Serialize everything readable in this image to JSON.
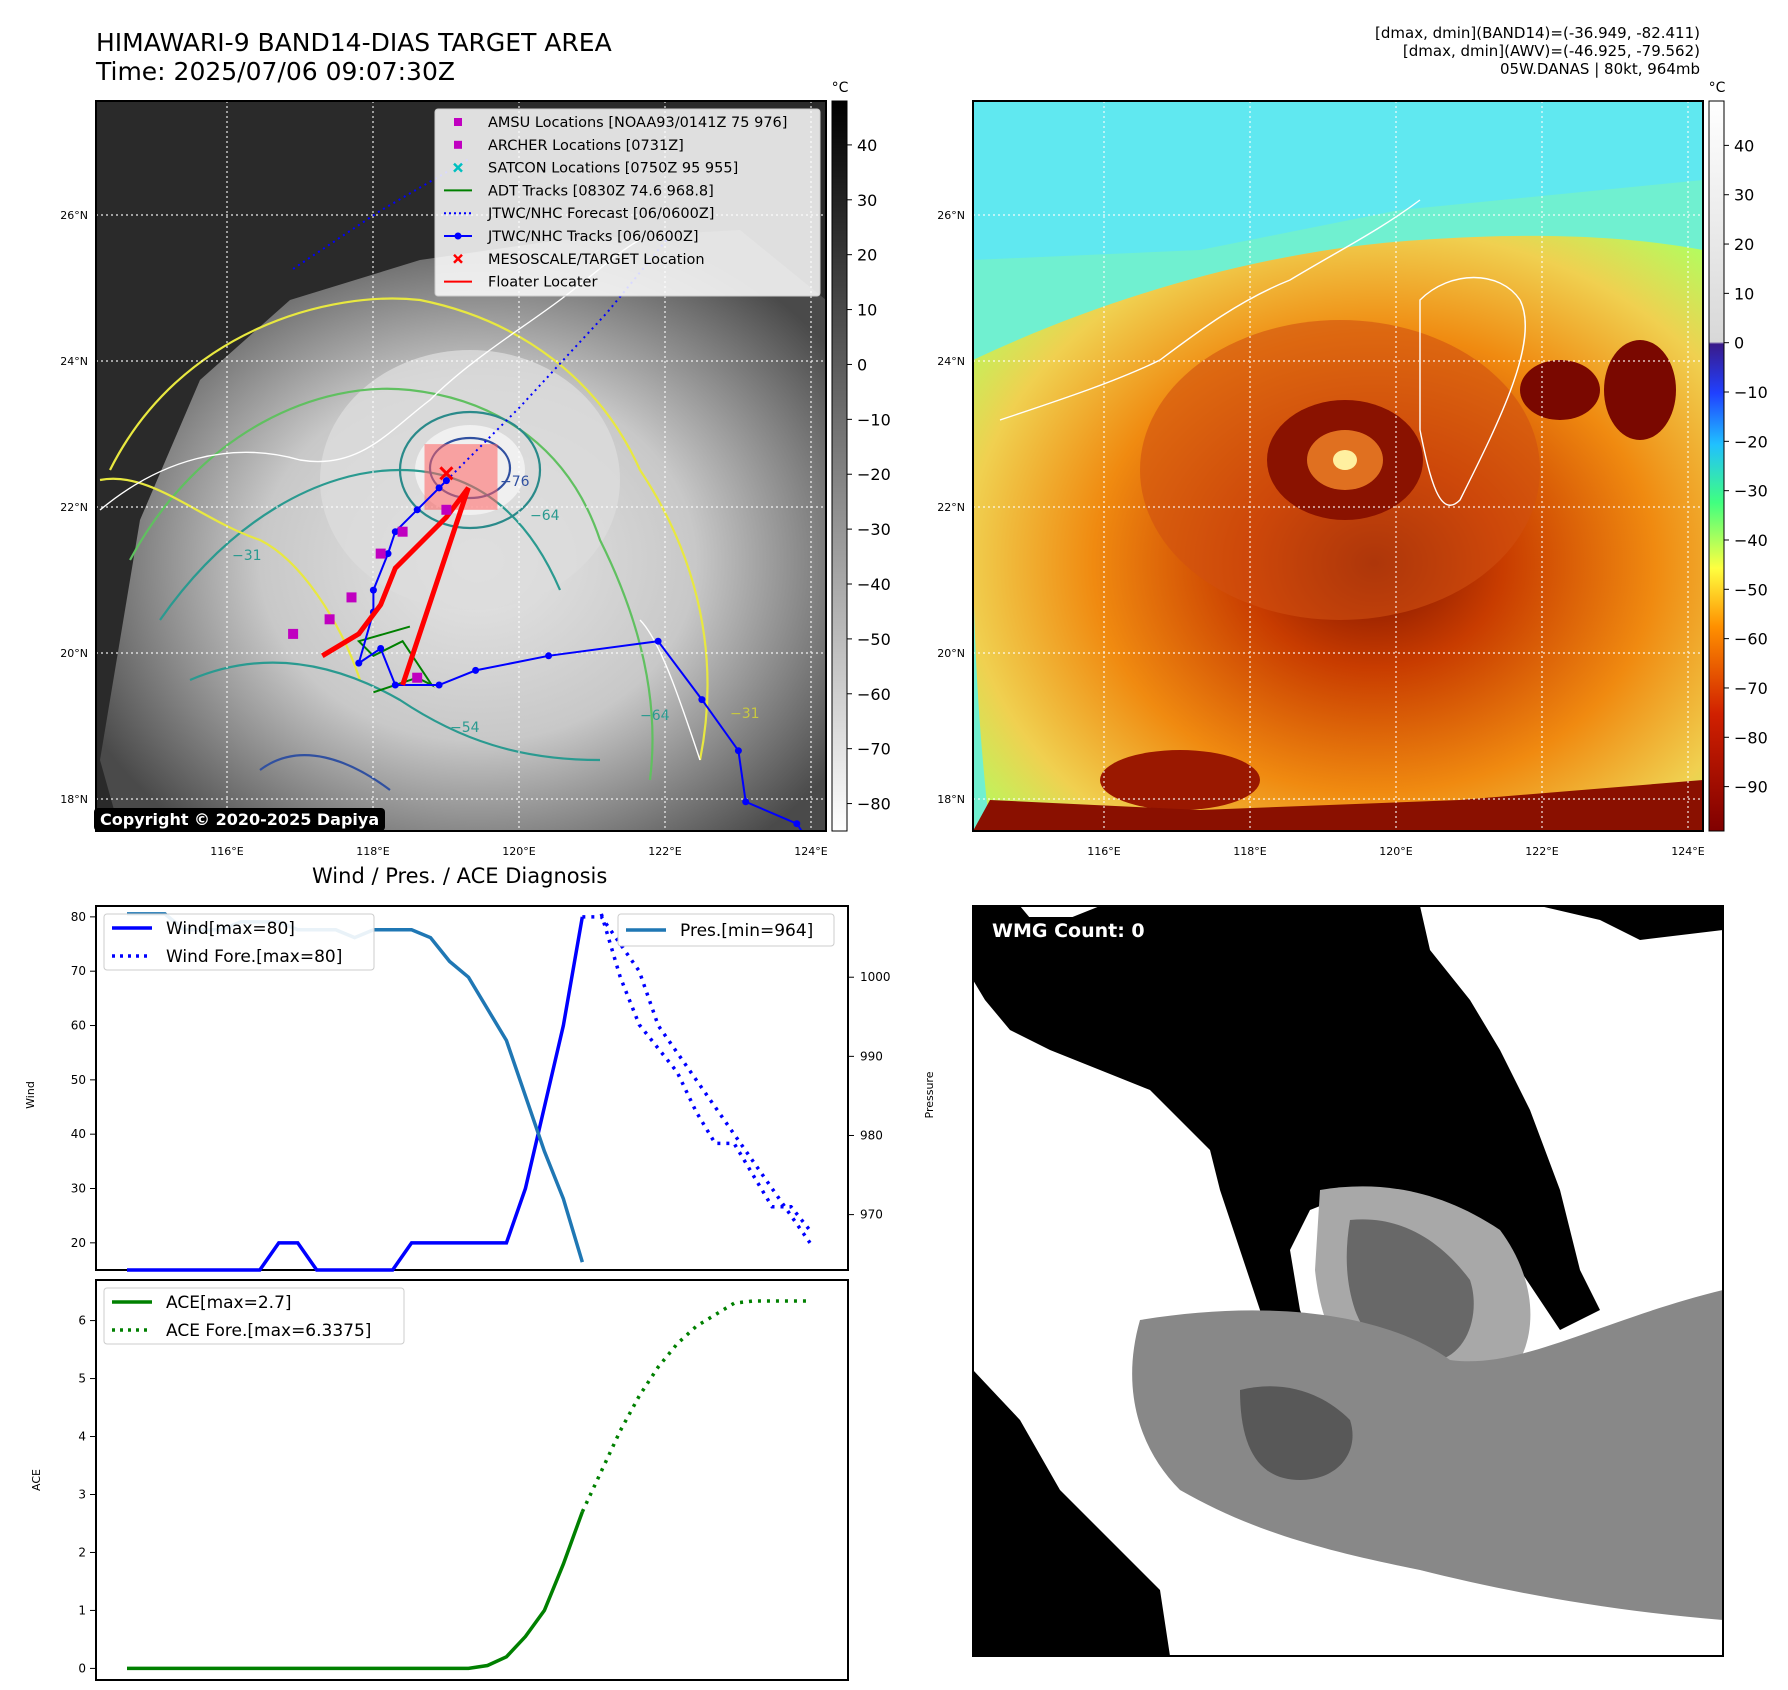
{
  "header": {
    "title_line1": "HIMAWARI-9 BAND14-DIAS TARGET AREA",
    "title_line2": "Time: 2025/07/06 09:07:30Z",
    "right_line1": "[dmax, dmin](BAND14)=(-36.949, -82.411)",
    "right_line2": "[dmax, dmin](AWV)=(-46.925, -79.562)",
    "right_line3": "05W.DANAS | 80kt, 964mb"
  },
  "copyright": "Copyright © 2020-2025 Dapiya",
  "maps": {
    "lon_ticks": [
      "116°E",
      "118°E",
      "120°E",
      "122°E",
      "124°E"
    ],
    "lat_ticks": [
      "26°N",
      "24°N",
      "22°N",
      "20°N",
      "18°N"
    ],
    "colorbar_unit": "°C",
    "left_colorbar_ticks": [
      "40",
      "30",
      "20",
      "10",
      "0",
      "−10",
      "−20",
      "−30",
      "−40",
      "−50",
      "−60",
      "−70",
      "−80"
    ],
    "right_colorbar_ticks": [
      "40",
      "30",
      "20",
      "10",
      "0",
      "−10",
      "−20",
      "−30",
      "−40",
      "−50",
      "−60",
      "−70",
      "−80",
      "−90"
    ],
    "contour_labels": [
      "−31",
      "−54",
      "−64",
      "−76",
      "−64",
      "−31",
      "−54",
      "−64"
    ]
  },
  "legend_map": [
    {
      "label": "AMSU Locations [NOAA93/0141Z 75 976]",
      "color": "#c000c0",
      "marker": "square"
    },
    {
      "label": "ARCHER Locations [0731Z]",
      "color": "#c000c0",
      "marker": "square"
    },
    {
      "label": "SATCON Locations [0750Z 95 955]",
      "color": "#00c0c0",
      "marker": "x"
    },
    {
      "label": "ADT Tracks [0830Z 74.6 968.8]",
      "color": "#008000",
      "marker": "line"
    },
    {
      "label": "JTWC/NHC Forecast [06/0600Z]",
      "color": "#0000ff",
      "marker": "dotted"
    },
    {
      "label": "JTWC/NHC Tracks [06/0600Z]",
      "color": "#0000ff",
      "marker": "line-dot"
    },
    {
      "label": "MESOSCALE/TARGET Location",
      "color": "#ff0000",
      "marker": "x"
    },
    {
      "label": "Floater Locater",
      "color": "#ff0000",
      "marker": "line"
    }
  ],
  "tracks": {
    "jtwc_tracks": {
      "lon": [
        124.0,
        123.8,
        123.1,
        123.0,
        122.5,
        121.9,
        120.4,
        119.4,
        118.9,
        118.3,
        118.1,
        117.8,
        118.0,
        118.0,
        118.2,
        118.3,
        118.6,
        118.9,
        119.0
      ],
      "lat": [
        17.6,
        17.9,
        18.2,
        18.9,
        19.6,
        20.4,
        20.2,
        20.0,
        19.8,
        19.8,
        20.3,
        20.1,
        20.8,
        21.1,
        21.6,
        21.9,
        22.2,
        22.5,
        22.6
      ]
    },
    "jtwc_forecast": {
      "lon": [
        119.0,
        120.0,
        121.2,
        122.1
      ],
      "lat": [
        22.6,
        23.6,
        24.9,
        26.0
      ]
    },
    "jtwc_forecast_sw": {
      "lon": [
        116.9,
        118.1,
        119.3
      ],
      "lat": [
        25.5,
        26.3,
        27.0
      ]
    },
    "adt": {
      "lon": [
        118.5,
        117.8,
        118.0,
        118.4,
        118.8,
        118.6,
        118.0
      ],
      "lat": [
        20.6,
        20.4,
        20.2,
        20.4,
        19.8,
        19.9,
        19.7
      ]
    },
    "archer": {
      "lon": [
        116.9,
        117.4,
        117.7,
        118.1,
        118.4,
        119.0,
        118.6
      ],
      "lat": [
        20.5,
        20.7,
        21.0,
        21.6,
        21.9,
        22.2,
        19.9
      ]
    },
    "floater": {
      "lon": [
        117.3,
        117.8,
        118.1,
        118.3,
        118.7,
        119.0,
        119.3,
        118.4
      ],
      "lat": [
        20.2,
        20.5,
        20.9,
        21.4,
        21.8,
        22.1,
        22.5,
        19.8
      ]
    },
    "target_box": {
      "lon": [
        118.7,
        119.7
      ],
      "lat": [
        22.2,
        23.1
      ]
    },
    "target_center": {
      "lon": 119.0,
      "lat": 22.7
    }
  },
  "diagnosis": {
    "title": "Wind / Pres. / ACE Diagnosis",
    "wind_label": "Wind",
    "pressure_label": "Pressure",
    "ace_label": "ACE"
  },
  "chart_data": [
    {
      "type": "line",
      "series": [
        {
          "name": "Wind[max=80]",
          "x": [
            0,
            1,
            2,
            3,
            4,
            5,
            6,
            7,
            8,
            9,
            10,
            11,
            12,
            13,
            14,
            15,
            16,
            17,
            18,
            19,
            20,
            21,
            22,
            23,
            24
          ],
          "values": [
            15,
            15,
            15,
            15,
            15,
            15,
            15,
            15,
            20,
            20,
            15,
            15,
            15,
            15,
            15,
            20,
            20,
            20,
            20,
            20,
            20,
            30,
            45,
            60,
            80
          ]
        },
        {
          "name": "Wind Fore.[max=80]",
          "x": [
            24,
            25,
            26,
            27,
            28,
            29,
            30,
            31,
            32,
            33,
            34,
            35,
            36
          ],
          "values": [
            80,
            80,
            75,
            70,
            60,
            55,
            50,
            45,
            40,
            35,
            30,
            25,
            20
          ]
        }
      ],
      "ylim": [
        15,
        82
      ],
      "yticks": [
        20,
        30,
        40,
        50,
        60,
        70,
        80
      ],
      "ylabel": "Wind"
    },
    {
      "type": "line",
      "series": [
        {
          "name": "Pres.[min=964]",
          "x": [
            0,
            1,
            2,
            3,
            4,
            5,
            6,
            7,
            8,
            9,
            10,
            11,
            12,
            13,
            14,
            15,
            16,
            17,
            18,
            19,
            20,
            21,
            22,
            23,
            24
          ],
          "values": [
            1008,
            1008,
            1008,
            1006,
            1006,
            1006,
            1007,
            1007,
            1007,
            1006,
            1006,
            1006,
            1005,
            1006,
            1006,
            1006,
            1005,
            1002,
            1000,
            996,
            992,
            985,
            978,
            972,
            964
          ]
        },
        {
          "name": "",
          "x": [
            25,
            26,
            27,
            28,
            29,
            30,
            31,
            32,
            33,
            34,
            35,
            36
          ],
          "values": [
            1008,
            1000,
            994,
            991,
            988,
            983,
            979,
            979,
            975,
            971,
            971,
            968
          ]
        }
      ],
      "ylim": [
        963,
        1009
      ],
      "yticks": [
        970,
        980,
        990,
        1000
      ],
      "ylabel": "Pressure"
    },
    {
      "type": "line",
      "series": [
        {
          "name": "ACE[max=2.7]",
          "x": [
            0,
            12,
            14,
            16,
            18,
            19,
            20,
            21,
            22,
            23,
            24
          ],
          "values": [
            0,
            0,
            0,
            0,
            0,
            0.05,
            0.2,
            0.55,
            1.0,
            1.8,
            2.7
          ]
        },
        {
          "name": "ACE Fore.[max=6.3375]",
          "x": [
            24,
            25,
            26,
            27,
            28,
            29,
            30,
            31,
            32,
            33,
            34,
            35,
            36
          ],
          "values": [
            2.7,
            3.4,
            4.1,
            4.7,
            5.2,
            5.6,
            5.9,
            6.1,
            6.3,
            6.3375,
            6.3375,
            6.3375,
            6.3375
          ]
        }
      ],
      "ylim": [
        -0.2,
        6.7
      ],
      "yticks": [
        0,
        1,
        2,
        3,
        4,
        5,
        6
      ],
      "ylabel": "ACE"
    }
  ],
  "wmg": {
    "label": "WMG Count: 0"
  }
}
